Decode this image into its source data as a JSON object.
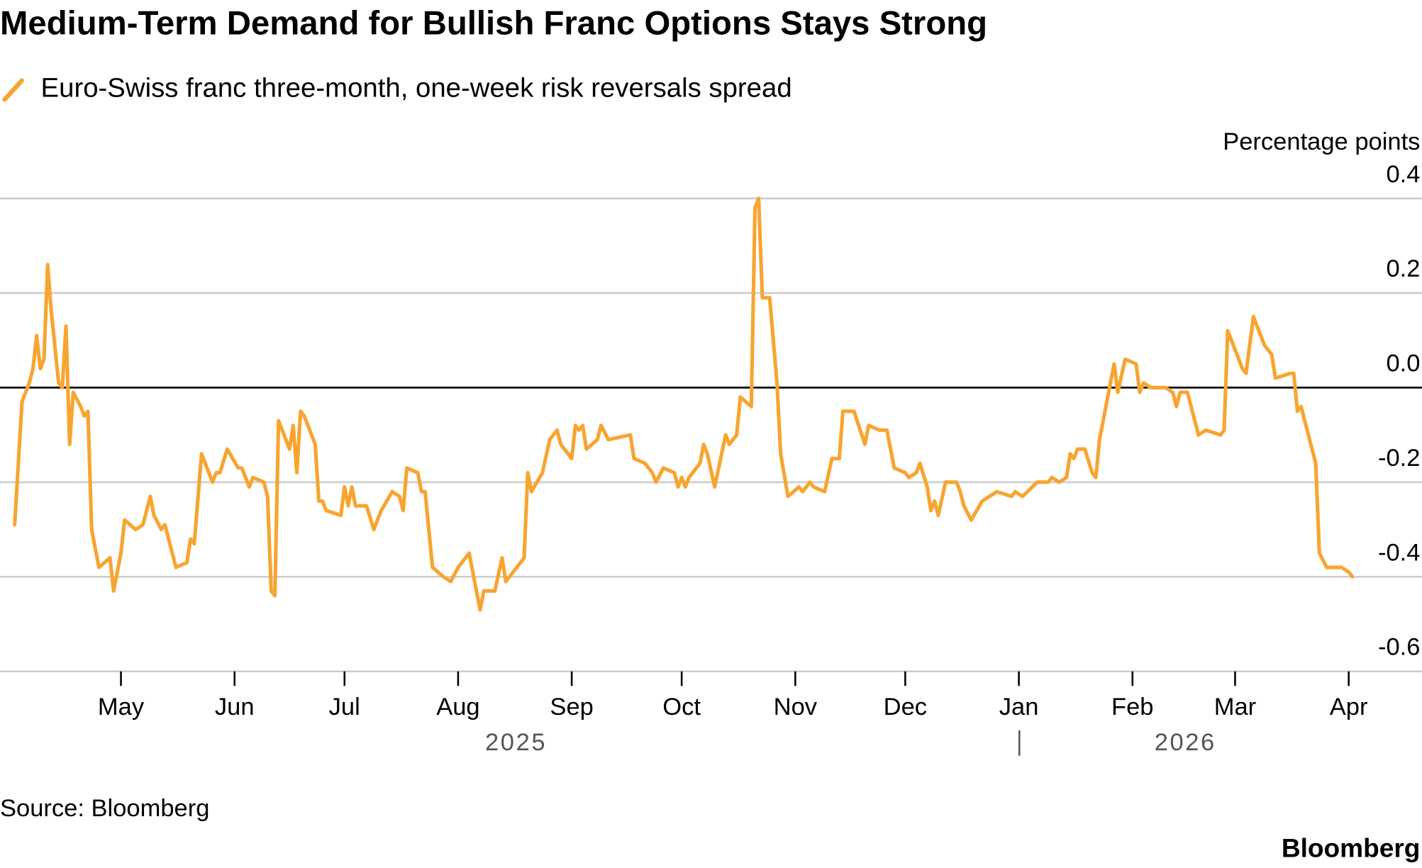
{
  "chart_data": {
    "type": "line",
    "title": "Medium-Term Demand for Bullish Franc Options Stays Strong",
    "y_axis_label": "Percentage points",
    "source": "Source: Bloomberg",
    "brand": "Bloomberg",
    "x_axis_years": [
      "2025",
      "2026"
    ],
    "xlim": [
      -4,
      384
    ],
    "xticks": [
      {
        "value": 29,
        "label": "May"
      },
      {
        "value": 60,
        "label": "Jun"
      },
      {
        "value": 90,
        "label": "Jul"
      },
      {
        "value": 121,
        "label": "Aug"
      },
      {
        "value": 152,
        "label": "Sep"
      },
      {
        "value": 182,
        "label": "Oct"
      },
      {
        "value": 213,
        "label": "Nov"
      },
      {
        "value": 243,
        "label": "Dec"
      },
      {
        "value": 274,
        "label": "Jan"
      },
      {
        "value": 305,
        "label": "Feb"
      },
      {
        "value": 333,
        "label": "Mar"
      },
      {
        "value": 364,
        "label": "Apr"
      }
    ],
    "ylim": [
      -0.6,
      0.4
    ],
    "yticks": [
      -0.6,
      -0.4,
      -0.2,
      {
        "value": 0,
        "label": "0.0"
      },
      0.2,
      0.4
    ],
    "grid": true,
    "x": [
      0,
      2,
      4,
      5,
      6,
      7,
      8,
      9,
      10,
      12,
      13,
      14,
      15,
      16,
      18,
      19,
      20,
      21,
      23,
      26,
      27,
      28,
      29,
      30,
      33,
      35,
      37,
      38,
      40,
      41,
      44,
      47,
      48,
      49,
      51,
      54,
      55,
      56,
      58,
      61,
      62,
      64,
      65,
      68,
      69,
      70,
      71,
      72,
      75,
      76,
      77,
      78,
      79,
      82,
      83,
      84,
      85,
      89,
      90,
      91,
      92,
      93,
      96,
      98,
      100,
      103,
      105,
      106,
      107,
      110,
      111,
      112,
      114,
      117,
      119,
      121,
      124,
      125,
      127,
      128,
      131,
      133,
      134,
      137,
      139,
      140,
      141,
      144,
      146,
      148,
      149,
      152,
      153,
      154,
      155,
      156,
      159,
      160,
      162,
      168,
      169,
      172,
      174,
      175,
      177,
      180,
      181,
      182,
      183,
      184,
      187,
      188,
      189,
      191,
      194,
      195,
      197,
      198,
      201,
      202,
      203,
      204,
      206,
      208,
      209,
      211,
      214,
      215,
      217,
      218,
      221,
      223,
      225,
      226,
      229,
      232,
      233,
      236,
      238,
      240,
      243,
      244,
      246,
      247,
      249,
      250,
      251,
      252,
      254,
      257,
      258,
      259,
      261,
      264,
      268,
      272,
      273,
      275,
      279,
      282,
      283,
      285,
      287,
      288,
      289,
      290,
      292,
      294,
      295,
      296,
      298,
      300,
      301,
      303,
      306,
      307,
      308,
      310,
      314,
      316,
      317,
      318,
      320,
      323,
      325,
      329,
      330,
      331,
      335,
      336,
      338,
      341,
      343,
      344,
      348,
      349,
      350,
      351,
      355,
      356,
      358,
      361,
      362,
      364,
      365
    ],
    "series": [
      {
        "name": "Euro-Swiss franc three-month, one-week risk reversals spread",
        "color": "#f7a531",
        "values": [
          -0.29,
          -0.03,
          0.01,
          0.04,
          0.11,
          0.04,
          0.06,
          0.26,
          0.16,
          0.01,
          0.0,
          0.13,
          -0.12,
          -0.01,
          -0.04,
          -0.06,
          -0.05,
          -0.3,
          -0.38,
          -0.36,
          -0.43,
          -0.39,
          -0.35,
          -0.28,
          -0.3,
          -0.29,
          -0.23,
          -0.27,
          -0.3,
          -0.29,
          -0.38,
          -0.37,
          -0.32,
          -0.33,
          -0.14,
          -0.2,
          -0.18,
          -0.18,
          -0.13,
          -0.17,
          -0.17,
          -0.21,
          -0.19,
          -0.2,
          -0.23,
          -0.43,
          -0.44,
          -0.07,
          -0.13,
          -0.08,
          -0.18,
          -0.05,
          -0.06,
          -0.12,
          -0.24,
          -0.24,
          -0.26,
          -0.27,
          -0.21,
          -0.25,
          -0.21,
          -0.25,
          -0.25,
          -0.3,
          -0.26,
          -0.22,
          -0.23,
          -0.26,
          -0.17,
          -0.18,
          -0.22,
          -0.22,
          -0.38,
          -0.4,
          -0.41,
          -0.38,
          -0.35,
          -0.39,
          -0.47,
          -0.43,
          -0.43,
          -0.36,
          -0.41,
          -0.38,
          -0.36,
          -0.18,
          -0.22,
          -0.18,
          -0.11,
          -0.09,
          -0.12,
          -0.15,
          -0.08,
          -0.09,
          -0.08,
          -0.13,
          -0.11,
          -0.08,
          -0.11,
          -0.1,
          -0.15,
          -0.16,
          -0.18,
          -0.2,
          -0.17,
          -0.18,
          -0.21,
          -0.19,
          -0.21,
          -0.19,
          -0.16,
          -0.12,
          -0.14,
          -0.21,
          -0.1,
          -0.12,
          -0.1,
          -0.02,
          -0.04,
          0.38,
          0.4,
          0.19,
          0.19,
          0.01,
          -0.14,
          -0.23,
          -0.21,
          -0.22,
          -0.2,
          -0.21,
          -0.22,
          -0.15,
          -0.15,
          -0.05,
          -0.05,
          -0.12,
          -0.08,
          -0.09,
          -0.09,
          -0.17,
          -0.18,
          -0.19,
          -0.18,
          -0.16,
          -0.21,
          -0.26,
          -0.24,
          -0.27,
          -0.2,
          -0.2,
          -0.22,
          -0.25,
          -0.28,
          -0.24,
          -0.22,
          -0.23,
          -0.22,
          -0.23,
          -0.2,
          -0.2,
          -0.19,
          -0.2,
          -0.19,
          -0.14,
          -0.15,
          -0.13,
          -0.13,
          -0.18,
          -0.19,
          -0.11,
          -0.03,
          0.05,
          -0.01,
          0.06,
          0.05,
          -0.01,
          0.01,
          0.0,
          0.0,
          -0.01,
          -0.04,
          -0.01,
          -0.01,
          -0.1,
          -0.09,
          -0.1,
          -0.09,
          0.12,
          0.04,
          0.03,
          0.15,
          0.09,
          0.07,
          0.02,
          0.03,
          0.03,
          -0.05,
          -0.04,
          -0.16,
          -0.35,
          -0.38,
          -0.38,
          -0.38,
          -0.39,
          -0.4
        ]
      }
    ]
  }
}
